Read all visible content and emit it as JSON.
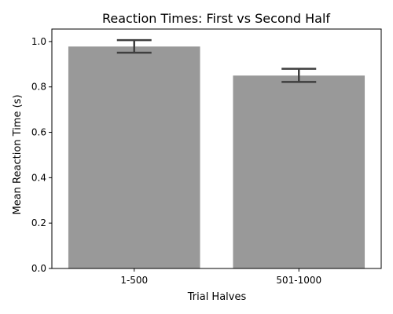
{
  "chart_data": {
    "type": "bar",
    "title": "Reaction Times: First vs Second Half",
    "xlabel": "Trial Halves",
    "ylabel": "Mean Reaction Time (s)",
    "categories": [
      "1-500",
      "501-1000"
    ],
    "values": [
      0.978,
      0.85
    ],
    "error_low": [
      0.951,
      0.822
    ],
    "error_high": [
      1.006,
      0.88
    ],
    "ylim": [
      0,
      1.055
    ],
    "yticks": [
      0.0,
      0.2,
      0.4,
      0.6,
      0.8,
      1.0
    ],
    "ytick_labels": [
      "0.0",
      "0.2",
      "0.4",
      "0.6",
      "0.8",
      "1.0"
    ],
    "grid": false,
    "legend": "none",
    "bar_color": "#999999",
    "error_color": "#3f3f3f"
  }
}
